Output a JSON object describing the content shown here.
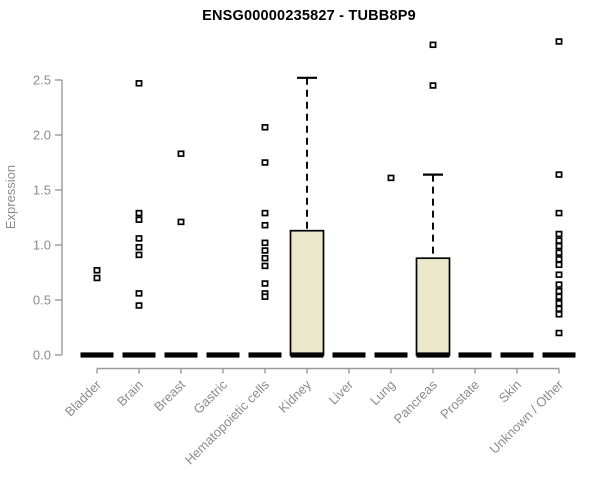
{
  "title": "ENSG00000235827 - TUBB8P9",
  "chart_data": {
    "type": "boxplot",
    "title": "ENSG00000235827 - TUBB8P9",
    "xlabel": "",
    "ylabel": "Expression",
    "ylim": [
      0.0,
      2.9
    ],
    "ytick_labels": [
      "0.0",
      "0.5",
      "1.0",
      "1.5",
      "2.0",
      "2.5"
    ],
    "grid": false,
    "legend": "none",
    "colors": {
      "box_fill": "#ece8cc",
      "box_border": "#000000",
      "median": "#000000",
      "whisker": "#000000",
      "outlier_fill": "#ffffff",
      "outlier_border": "#000000",
      "axis_line": "#9a9a9a",
      "axis_text": "#8c8c8c",
      "title_text": "#000000"
    },
    "categories": [
      "Bladder",
      "Brain",
      "Breast",
      "Gastric",
      "Hematopoietic cells",
      "Kidney",
      "Liver",
      "Lung",
      "Pancreas",
      "Prostate",
      "Skin",
      "Unknown / Other"
    ],
    "boxes": [
      {
        "category": "Bladder",
        "q1": 0,
        "median": 0,
        "q3": 0,
        "whisker_low": 0,
        "whisker_high": 0,
        "outliers": [
          0.77,
          0.7
        ]
      },
      {
        "category": "Brain",
        "q1": 0,
        "median": 0,
        "q3": 0,
        "whisker_low": 0,
        "whisker_high": 0,
        "outliers": [
          2.47,
          1.29,
          1.23,
          1.06,
          0.98,
          0.91,
          0.56,
          0.45
        ]
      },
      {
        "category": "Breast",
        "q1": 0,
        "median": 0,
        "q3": 0,
        "whisker_low": 0,
        "whisker_high": 0,
        "outliers": [
          1.83,
          1.21
        ]
      },
      {
        "category": "Gastric",
        "q1": 0,
        "median": 0,
        "q3": 0,
        "whisker_low": 0,
        "whisker_high": 0,
        "outliers": []
      },
      {
        "category": "Hematopoietic cells",
        "q1": 0,
        "median": 0,
        "q3": 0,
        "whisker_low": 0,
        "whisker_high": 0,
        "outliers": [
          2.07,
          1.75,
          1.29,
          1.18,
          1.02,
          0.95,
          0.88,
          0.81,
          0.65,
          0.56,
          0.53
        ]
      },
      {
        "category": "Kidney",
        "q1": 0,
        "median": 0,
        "q3": 1.13,
        "whisker_low": 0,
        "whisker_high": 2.52,
        "outliers": []
      },
      {
        "category": "Liver",
        "q1": 0,
        "median": 0,
        "q3": 0,
        "whisker_low": 0,
        "whisker_high": 0,
        "outliers": []
      },
      {
        "category": "Lung",
        "q1": 0,
        "median": 0,
        "q3": 0,
        "whisker_low": 0,
        "whisker_high": 0,
        "outliers": [
          1.61
        ]
      },
      {
        "category": "Pancreas",
        "q1": 0,
        "median": 0,
        "q3": 0.88,
        "whisker_low": 0,
        "whisker_high": 1.64,
        "outliers": [
          2.82,
          2.45
        ]
      },
      {
        "category": "Prostate",
        "q1": 0,
        "median": 0,
        "q3": 0,
        "whisker_low": 0,
        "whisker_high": 0,
        "outliers": []
      },
      {
        "category": "Skin",
        "q1": 0,
        "median": 0,
        "q3": 0,
        "whisker_low": 0,
        "whisker_high": 0,
        "outliers": []
      },
      {
        "category": "Unknown / Other",
        "q1": 0,
        "median": 0,
        "q3": 0,
        "whisker_low": 0,
        "whisker_high": 0,
        "outliers": [
          2.85,
          1.64,
          1.29,
          1.1,
          1.04,
          0.99,
          0.93,
          0.87,
          0.82,
          0.73,
          0.64,
          0.58,
          0.53,
          0.47,
          0.42,
          0.37,
          0.2
        ]
      }
    ]
  }
}
